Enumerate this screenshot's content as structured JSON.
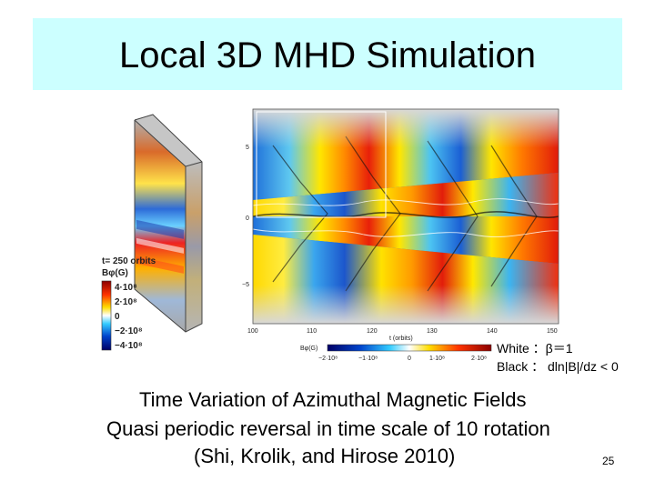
{
  "slide": {
    "title": "Local 3D MHD Simulation",
    "legend_white": "White ：β＝1",
    "legend_black": "Black ： dln|B|/dz < 0",
    "caption_line1": "Time Variation of Azimuthal Magnetic Fields",
    "caption_line2": "Quasi periodic reversal  in  time scale of 10 rotation",
    "caption_line3": "(Shi, Krolik, and Hirose 2010)",
    "page_number": "25"
  },
  "figure": {
    "box_time": "t= 250 orbits",
    "colorbar_label": "Bφ(G)",
    "colorbar_ticks": [
      "4·10⁸",
      "2·10⁸",
      "0",
      "−2·10⁸",
      "−4·10⁸"
    ],
    "z_ticks": [
      "5",
      "0",
      "−5"
    ],
    "t_ticks": [
      "100",
      "110",
      "120",
      "130",
      "140",
      "150"
    ],
    "t_axis_label": "t (orbits)",
    "h_colorbar_label": "Bφ(G)",
    "h_colorbar_ticks": [
      "−2·10⁸",
      "−1·10⁸",
      "0",
      "1·10⁸",
      "2·10⁸"
    ]
  }
}
